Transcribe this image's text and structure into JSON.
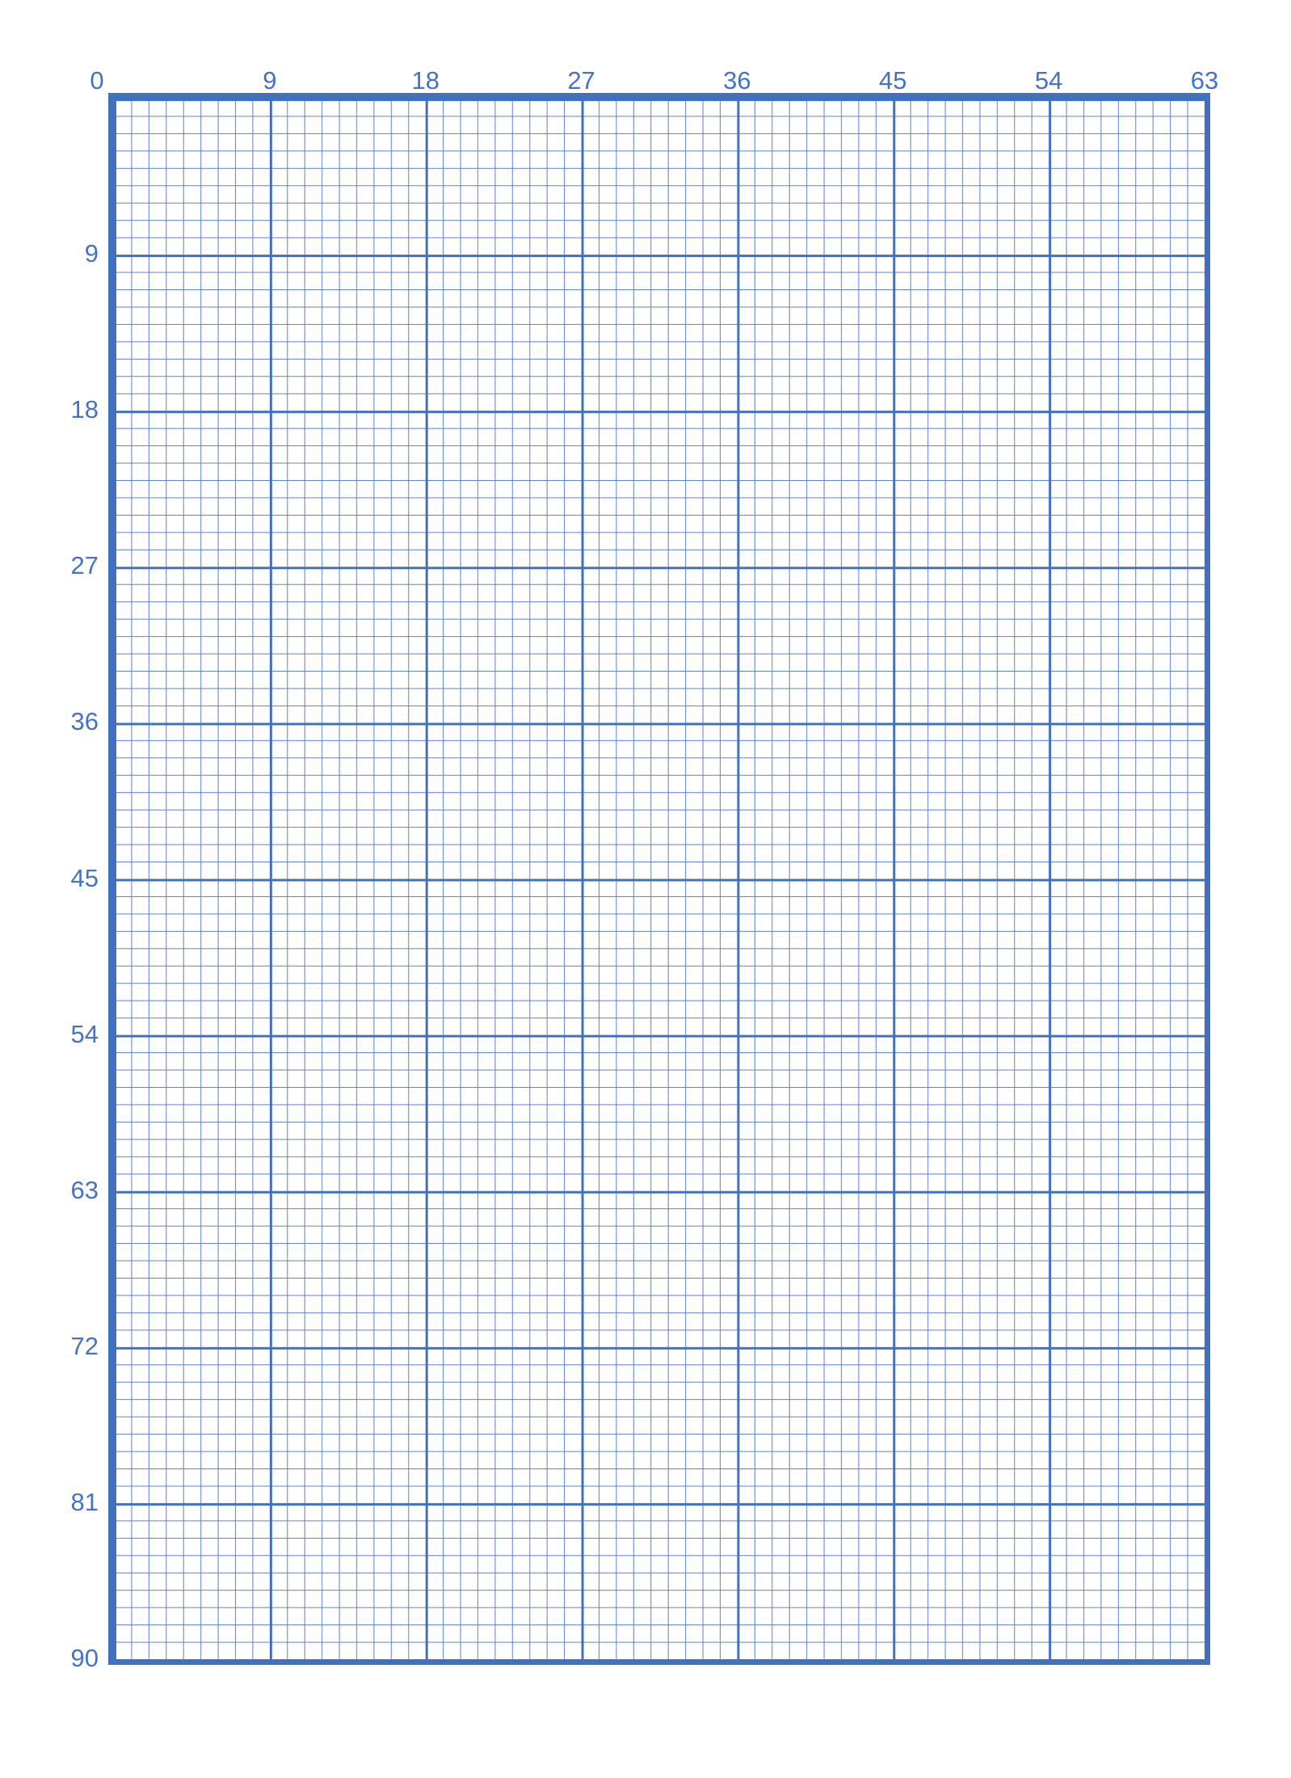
{
  "sheet": {
    "description": "Blank graph paper with numbered axes counting by nines"
  },
  "colors": {
    "background": "#ffffff",
    "major_line": "#4170be",
    "minor_line": "#5a80c6",
    "label": "#4473c5"
  },
  "grid": {
    "columns": 63,
    "rows": 90,
    "cells_per_major_block": 9,
    "x_axis_labels": [
      "0",
      "9",
      "18",
      "27",
      "36",
      "45",
      "54",
      "63"
    ],
    "y_axis_labels": [
      "9",
      "18",
      "27",
      "36",
      "45",
      "54",
      "63",
      "72",
      "81",
      "90"
    ]
  }
}
